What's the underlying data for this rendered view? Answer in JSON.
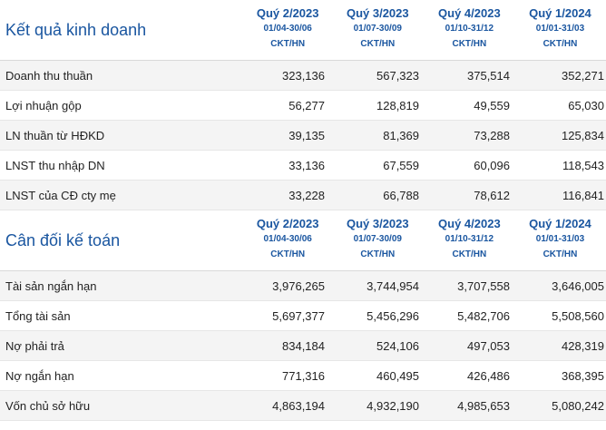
{
  "sections": [
    {
      "title": "Kết quả kinh doanh",
      "periods": [
        {
          "quarter": "Quý 2/2023",
          "range": "01/04-30/06",
          "audit": "CKT/HN"
        },
        {
          "quarter": "Quý 3/2023",
          "range": "01/07-30/09",
          "audit": "CKT/HN"
        },
        {
          "quarter": "Quý 4/2023",
          "range": "01/10-31/12",
          "audit": "CKT/HN"
        },
        {
          "quarter": "Quý 1/2024",
          "range": "01/01-31/03",
          "audit": "CKT/HN"
        }
      ],
      "rows": [
        {
          "label": "Doanh thu thuần",
          "values": [
            "323,136",
            "567,323",
            "375,514",
            "352,271"
          ]
        },
        {
          "label": "Lợi nhuận gộp",
          "values": [
            "56,277",
            "128,819",
            "49,559",
            "65,030"
          ]
        },
        {
          "label": "LN thuần từ HĐKD",
          "values": [
            "39,135",
            "81,369",
            "73,288",
            "125,834"
          ]
        },
        {
          "label": "LNST thu nhập DN",
          "values": [
            "33,136",
            "67,559",
            "60,096",
            "118,543"
          ]
        },
        {
          "label": "LNST của CĐ cty mẹ",
          "values": [
            "33,228",
            "66,788",
            "78,612",
            "116,841"
          ]
        }
      ]
    },
    {
      "title": "Cân đối kế toán",
      "periods": [
        {
          "quarter": "Quý 2/2023",
          "range": "01/04-30/06",
          "audit": "CKT/HN"
        },
        {
          "quarter": "Quý 3/2023",
          "range": "01/07-30/09",
          "audit": "CKT/HN"
        },
        {
          "quarter": "Quý 4/2023",
          "range": "01/10-31/12",
          "audit": "CKT/HN"
        },
        {
          "quarter": "Quý 1/2024",
          "range": "01/01-31/03",
          "audit": "CKT/HN"
        }
      ],
      "rows": [
        {
          "label": "Tài sản ngắn hạn",
          "values": [
            "3,976,265",
            "3,744,954",
            "3,707,558",
            "3,646,005"
          ]
        },
        {
          "label": "Tổng tài sản",
          "values": [
            "5,697,377",
            "5,456,296",
            "5,482,706",
            "5,508,560"
          ]
        },
        {
          "label": "Nợ phải trả",
          "values": [
            "834,184",
            "524,106",
            "497,053",
            "428,319"
          ]
        },
        {
          "label": "Nợ ngắn hạn",
          "values": [
            "771,316",
            "460,495",
            "426,486",
            "368,395"
          ]
        },
        {
          "label": "Vốn chủ sở hữu",
          "values": [
            "4,863,194",
            "4,932,190",
            "4,985,653",
            "5,080,242"
          ]
        }
      ]
    }
  ],
  "colors": {
    "accent": "#1a56a0",
    "row_alt": "#f4f4f4",
    "divider": "#e6e6e6"
  }
}
